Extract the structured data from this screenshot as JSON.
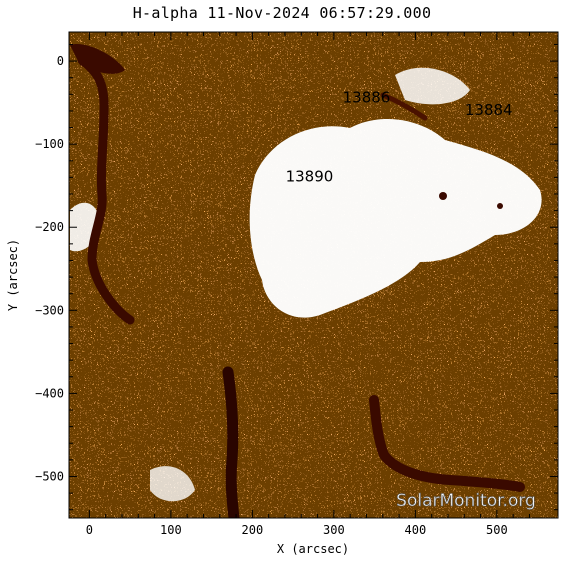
{
  "title": "H-alpha 11-Nov-2024 06:57:29.000",
  "x_axis": {
    "label": "X (arcsec)",
    "range": [
      -25,
      575
    ],
    "ticks": [
      "0",
      "100",
      "200",
      "300",
      "400",
      "500"
    ]
  },
  "y_axis": {
    "label": "Y (arcsec)",
    "range": [
      -550,
      35
    ],
    "ticks": [
      "0",
      "−100",
      "−200",
      "−300",
      "−400",
      "−500"
    ]
  },
  "active_regions": [
    {
      "label": "13886",
      "x": 340,
      "y": -50
    },
    {
      "label": "13884",
      "x": 490,
      "y": -65
    },
    {
      "label": "13890",
      "x": 270,
      "y": -145
    }
  ],
  "watermark": "SolarMonitor.org",
  "colors": {
    "chromosphere": "#e56a1a",
    "filament": "#3a0a00",
    "plage": "#ffffff",
    "background": "#f4b27a"
  }
}
